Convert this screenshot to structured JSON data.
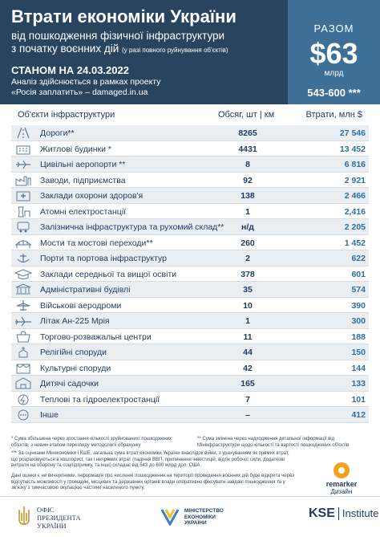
{
  "header": {
    "title": "Втрати економіки України",
    "subtitle_line1": "від пошкодження фізичної інфраструктури",
    "subtitle_line2": "з початку воєнних дій",
    "subtitle_note": "(у разі повного руйнування об'єктів)",
    "as_of": "СТАНОМ НА 24.03.2022",
    "analysis_line1": "Аналіз здійснюється в рамках проекту",
    "analysis_line2": "«Росія заплатить» – damaged.in.ua"
  },
  "total": {
    "label": "РАЗОМ",
    "amount": "$63",
    "unit": "млрд",
    "range": "543-600 ***"
  },
  "table": {
    "col_name": "Об'єкти інфраструктури",
    "col_volume": "Обсяг, шт | км",
    "col_loss": "Втрати, млн $",
    "rows": [
      {
        "icon": "road-icon",
        "name": "Дороги**",
        "volume": "8265",
        "loss": "27 546"
      },
      {
        "icon": "residential-building-icon",
        "name": "Житлові будинки *",
        "volume": "4431",
        "loss": "13 452"
      },
      {
        "icon": "airplane-icon",
        "name": "Цивільні аеропорти **",
        "volume": "8",
        "loss": "6 816"
      },
      {
        "icon": "factory-icon",
        "name": "Заводи, підприємства",
        "volume": "92",
        "loss": "2 921"
      },
      {
        "icon": "hospital-icon",
        "name": "Заклади охорони здоров'я",
        "volume": "138",
        "loss": "2 466"
      },
      {
        "icon": "nuclear-plant-icon",
        "name": "Атомні електростанції",
        "volume": "1",
        "loss": "2,416"
      },
      {
        "icon": "railway-icon",
        "name": "Залізнична інфраструктура та рухомий склад**",
        "volume": "н/д",
        "loss": "2 205"
      },
      {
        "icon": "bridge-icon",
        "name": "Мости та мостові переходи**",
        "volume": "260",
        "loss": "1 452"
      },
      {
        "icon": "port-icon",
        "name": "Порти та портова інфраструктур",
        "volume": "2",
        "loss": "622"
      },
      {
        "icon": "graduation-cap-icon",
        "name": "Заклади середньої та вищої освіти",
        "volume": "378",
        "loss": "601"
      },
      {
        "icon": "government-building-icon",
        "name": "Адміністративні будівлі",
        "volume": "35",
        "loss": "574"
      },
      {
        "icon": "military-plane-icon",
        "name": "Військові аеродроми",
        "volume": "10",
        "loss": "390"
      },
      {
        "icon": "an225-plane-icon",
        "name": "Літак Ан-225 Мрія",
        "volume": "1",
        "loss": "300"
      },
      {
        "icon": "shopping-center-icon",
        "name": "Торгово-розважальні центри",
        "volume": "11",
        "loss": "188"
      },
      {
        "icon": "church-icon",
        "name": "Релігійні споруди",
        "volume": "44",
        "loss": "150"
      },
      {
        "icon": "theater-icon",
        "name": "Культурні споруди",
        "volume": "42",
        "loss": "144"
      },
      {
        "icon": "kindergarten-icon",
        "name": "Дитячі садочки",
        "volume": "165",
        "loss": "133"
      },
      {
        "icon": "power-plant-icon",
        "name": "Теплові та гідроелектростанції",
        "volume": "7",
        "loss": "101"
      },
      {
        "icon": "other-icon",
        "name": "Інше",
        "volume": "–",
        "loss": "412"
      }
    ]
  },
  "notes": {
    "note1": "* Сума збільшена через зростання кількості зруйнованих/ пошкоджених об'єктів, з новим етапом перегляду методології обрахунку",
    "note2": "** Сума змінена через надходження детальної інформації від Мінінфраструктури щодо кількості та вартості пошкоджених об'єктів",
    "note3": "*** За оцінками Мінекономіки і КШЕ, загальна сума втрат економіки України внаслідок війни, з урахуванням як прямих втрат, що розраховуються в кошторисі, так і непрямих втрат (падіння ВВП, припинення інвестицій, відтік робочої сили, додаткові витрати на оборону та соцпідтримку, та інші) складає від 543 до 600 млрд дол. США.",
    "note4": "Дані оцінки є не вичерпними. Інформація про численні пошкодження на території проведення воєнних дій буде відкрита через відсутність можливості у громадян, місцевих та державних органів влади оперативно фіксувати завдані пошкодження та у зв'язку з тимчасовою окупацією частини населеного пункту."
  },
  "designer": {
    "brand": "remarker",
    "role": "Дизайн"
  },
  "footer": {
    "ofp_line1": "ОФІС",
    "ofp_line2": "ПРЕЗИДЕНТА",
    "ofp_line3": "УКРАЇНИ",
    "mineco_line1": "МІНІСТЕРСТВО",
    "mineco_line2": "ЕКОНОМІКИ",
    "mineco_line3": "УКРАЇНИ",
    "kse": "KSE",
    "kse_inst": "Institute"
  }
}
